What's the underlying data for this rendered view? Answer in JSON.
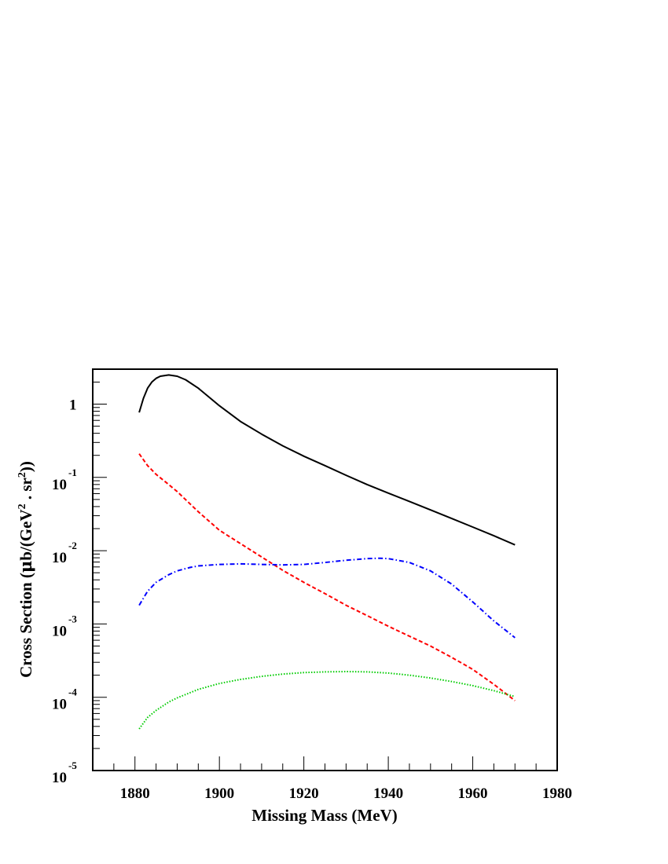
{
  "chart_data": {
    "type": "line",
    "xlabel": "Missing Mass (MeV)",
    "ylabel": {
      "prefix": "Cross Section (",
      "mu": "μ",
      "mid": "b/(GeV",
      "sup1": "2",
      "dot": " . sr",
      "sup2": "2",
      "suffix": "))"
    },
    "xlim": [
      1870,
      1980
    ],
    "ylim": [
      1e-05,
      3
    ],
    "y_scale": "log",
    "grid": false,
    "legend": "none",
    "x_ticks": [
      {
        "value": 1880,
        "label": "1880"
      },
      {
        "value": 1900,
        "label": "1900"
      },
      {
        "value": 1920,
        "label": "1920"
      },
      {
        "value": 1940,
        "label": "1940"
      },
      {
        "value": 1960,
        "label": "1960"
      },
      {
        "value": 1980,
        "label": "1980"
      }
    ],
    "y_ticks": [
      {
        "value": 1,
        "base": "1",
        "exp": ""
      },
      {
        "value": 0.1,
        "base": "10",
        "exp": "-1"
      },
      {
        "value": 0.01,
        "base": "10",
        "exp": "-2"
      },
      {
        "value": 0.001,
        "base": "10",
        "exp": "-3"
      },
      {
        "value": 0.0001,
        "base": "10",
        "exp": "-4"
      },
      {
        "value": 1e-05,
        "base": "10",
        "exp": "-5"
      }
    ],
    "series": [
      {
        "color": "#000000",
        "style": "solid",
        "x": [
          1881,
          1882,
          1883,
          1884,
          1885,
          1886,
          1888,
          1890,
          1892,
          1895,
          1900,
          1905,
          1910,
          1915,
          1920,
          1925,
          1930,
          1935,
          1940,
          1945,
          1950,
          1955,
          1960,
          1965,
          1970
        ],
        "y": [
          0.77,
          1.2,
          1.65,
          2.0,
          2.25,
          2.4,
          2.5,
          2.4,
          2.15,
          1.65,
          0.95,
          0.58,
          0.39,
          0.27,
          0.195,
          0.145,
          0.107,
          0.08,
          0.061,
          0.047,
          0.036,
          0.0275,
          0.021,
          0.016,
          0.012
        ]
      },
      {
        "color": "#ff0000",
        "style": "dashed",
        "x": [
          1881,
          1883,
          1885,
          1888,
          1890,
          1895,
          1900,
          1905,
          1910,
          1915,
          1920,
          1925,
          1930,
          1935,
          1940,
          1945,
          1950,
          1955,
          1960,
          1965,
          1970
        ],
        "y": [
          0.21,
          0.145,
          0.11,
          0.08,
          0.064,
          0.034,
          0.019,
          0.0125,
          0.0082,
          0.0054,
          0.0037,
          0.0026,
          0.0018,
          0.0013,
          0.00093,
          0.00068,
          0.0005,
          0.00035,
          0.00024,
          0.00015,
          9e-05
        ]
      },
      {
        "color": "#0000ff",
        "style": "dashdot",
        "x": [
          1881,
          1883,
          1885,
          1888,
          1890,
          1893,
          1895,
          1900,
          1905,
          1910,
          1915,
          1920,
          1925,
          1930,
          1935,
          1938,
          1940,
          1945,
          1950,
          1955,
          1960,
          1965,
          1970
        ],
        "y": [
          0.0018,
          0.0028,
          0.0037,
          0.0047,
          0.0053,
          0.0059,
          0.0062,
          0.0065,
          0.0066,
          0.0065,
          0.0064,
          0.0065,
          0.0069,
          0.0074,
          0.0078,
          0.0079,
          0.0078,
          0.0069,
          0.0053,
          0.0035,
          0.002,
          0.0011,
          0.00065
        ]
      },
      {
        "color": "#00cc00",
        "style": "dotted",
        "x": [
          1881,
          1883,
          1885,
          1888,
          1890,
          1895,
          1900,
          1905,
          1910,
          1915,
          1920,
          1925,
          1930,
          1935,
          1940,
          1945,
          1950,
          1955,
          1960,
          1965,
          1970
        ],
        "y": [
          3.7e-05,
          5.3e-05,
          6.6e-05,
          8.6e-05,
          9.8e-05,
          0.000128,
          0.000154,
          0.000175,
          0.000193,
          0.000207,
          0.000217,
          0.000222,
          0.000224,
          0.000222,
          0.000214,
          0.0002,
          0.000183,
          0.000164,
          0.000144,
          0.000123,
          0.000102
        ]
      }
    ]
  }
}
